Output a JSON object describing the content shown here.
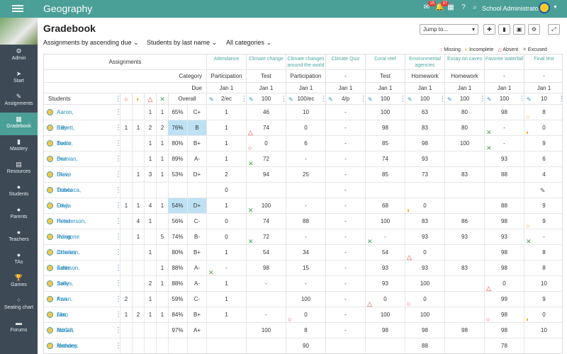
{
  "topbar": {
    "title": "Geography",
    "badges": {
      "messages": "15",
      "notifications": "37"
    },
    "user": "School Administrator"
  },
  "sidebar": {
    "items": [
      {
        "label": "Admin",
        "icon": "⚙"
      },
      {
        "label": "Start",
        "icon": "➤"
      },
      {
        "label": "Assignments",
        "icon": "✎"
      },
      {
        "label": "Gradebook",
        "icon": "▦"
      },
      {
        "label": "Mastery",
        "icon": "▮"
      },
      {
        "label": "Resources",
        "icon": "▤"
      },
      {
        "label": "Students",
        "icon": "●"
      },
      {
        "label": "Parents",
        "icon": "●"
      },
      {
        "label": "Teachers",
        "icon": "●"
      },
      {
        "label": "TAs",
        "icon": "●"
      },
      {
        "label": "Games",
        "icon": "🏆"
      },
      {
        "label": "Seating chart",
        "icon": "⁘"
      },
      {
        "label": "Forums",
        "icon": "▬"
      }
    ]
  },
  "page": {
    "title": "Gradebook",
    "filters": [
      "Assignments by ascending due",
      "Students by last name",
      "All categories"
    ],
    "jump": "Jump to..."
  },
  "legend": [
    {
      "sym": "○",
      "label": "Missing",
      "color": "#e53935"
    },
    {
      "sym": "◐",
      "label": "Incomplete",
      "color": "#f2a000"
    },
    {
      "sym": "△",
      "label": "Absent",
      "color": "#e53935"
    },
    {
      "sym": "✕",
      "label": "Excused",
      "color": "#43a047"
    }
  ],
  "header": {
    "assignments": "Assignments",
    "category": "Category",
    "due": "Due",
    "students": "Students",
    "overall": "Overall"
  },
  "assignments": [
    {
      "name": "Attendance",
      "category": "Participation",
      "due": "Jan 1",
      "pts": "2/ec"
    },
    {
      "name": "Climate change",
      "category": "Test",
      "due": "Jan 1",
      "pts": "100"
    },
    {
      "name": "Climate changes around the world",
      "category": "Participation",
      "due": "Jan 1",
      "pts": "100/ec"
    },
    {
      "name": "Climate Quiz",
      "category": "-",
      "due": "Jan 1",
      "pts": "4/p"
    },
    {
      "name": "Coral reef",
      "category": "Test",
      "due": "Jan 1",
      "pts": "100"
    },
    {
      "name": "Environmental agencies",
      "category": "Homework",
      "due": "Jan 1",
      "pts": "100"
    },
    {
      "name": "Essay on caves",
      "category": "Homework",
      "due": "Jan 1",
      "pts": "100"
    },
    {
      "name": "Favorite waterfall",
      "category": "-",
      "due": "Jan 1",
      "pts": "100"
    },
    {
      "name": "Final test",
      "category": "-",
      "due": "Jan 1",
      "pts": "10"
    }
  ],
  "students": [
    {
      "name": "Aaron, Billy",
      "m": "",
      "i": "",
      "a": "1",
      "x": "1",
      "pct": "65%",
      "grade": "C+",
      "hl": false,
      "s": [
        "1",
        "46",
        "10",
        "-",
        "100",
        "63",
        "80",
        "98",
        "8"
      ]
    },
    {
      "name": "Benett, Tudor",
      "m": "1",
      "i": "1",
      "a": "2",
      "x": "2",
      "pct": "76%",
      "grade": "B",
      "hl": true,
      "s": [
        "1",
        "74",
        "0",
        "-",
        "98",
        "83",
        "80",
        "-",
        "0"
      ]
    },
    {
      "name": "Besto, Bex",
      "m": "",
      "i": "",
      "a": "1",
      "x": "1",
      "pct": "80%",
      "grade": "B+",
      "hl": false,
      "s": [
        "1",
        "0",
        "6",
        "-",
        "85",
        "98",
        "100",
        "-",
        "9"
      ]
    },
    {
      "name": "Damian, Steve",
      "m": "",
      "i": "",
      "a": "1",
      "x": "1",
      "pct": "89%",
      "grade": "A-",
      "hl": false,
      "s": [
        "1",
        "72",
        "-",
        "-",
        "74",
        "93",
        "",
        "93",
        "6"
      ]
    },
    {
      "name": "Diss, Travis",
      "m": "",
      "i": "1",
      "a": "3",
      "x": "1",
      "pct": "53%",
      "grade": "D+",
      "hl": false,
      "s": [
        "2",
        "94",
        "25",
        "-",
        "85",
        "73",
        "83",
        "88",
        "4"
      ]
    },
    {
      "name": "Doboaca, Olivia",
      "m": "",
      "i": "",
      "a": "",
      "x": "",
      "pct": "",
      "grade": "",
      "hl": false,
      "s": [
        "0",
        "",
        "",
        "-",
        "",
        "",
        "",
        "",
        ""
      ]
    },
    {
      "name": "Frey, Peter",
      "m": "1",
      "i": "1",
      "a": "4",
      "x": "1",
      "pct": "54%",
      "grade": "D+",
      "hl": true,
      "s": [
        "1",
        "100",
        "-",
        "-",
        "68",
        "0",
        "",
        "88",
        "9"
      ]
    },
    {
      "name": "Henderson, Roxanne",
      "m": "",
      "i": "4",
      "a": "1",
      "x": "",
      "pct": "56%",
      "grade": "C-",
      "hl": false,
      "s": [
        "0",
        "74",
        "88",
        "-",
        "100",
        "83",
        "86",
        "98",
        "9"
      ]
    },
    {
      "name": "Irving, Charles",
      "m": "",
      "i": "1",
      "a": "",
      "x": "5",
      "pct": "74%",
      "grade": "B-",
      "hl": false,
      "s": [
        "0",
        "72",
        "-",
        "-",
        "-",
        "93",
        "93",
        "93",
        "-"
      ]
    },
    {
      "name": "Johnson, Katie",
      "m": "",
      "i": "",
      "a": "1",
      "x": "",
      "pct": "80%",
      "grade": "B+",
      "hl": false,
      "s": [
        "1",
        "54",
        "34",
        "-",
        "54",
        "0",
        "",
        "98",
        "8"
      ]
    },
    {
      "name": "Johnson, Sally",
      "m": "",
      "i": "",
      "a": "",
      "x": "1",
      "pct": "88%",
      "grade": "A-",
      "hl": false,
      "s": [
        "-",
        "98",
        "15",
        "-",
        "93",
        "93",
        "83",
        "98",
        "8"
      ]
    },
    {
      "name": "Jones, Ann",
      "m": "",
      "i": "",
      "a": "2",
      "x": "1",
      "pct": "88%",
      "grade": "A-",
      "hl": false,
      "s": [
        "1",
        "-",
        "-",
        "-",
        "93",
        "100",
        "",
        "0",
        "10"
      ]
    },
    {
      "name": "Kwan, Alan",
      "m": "2",
      "i": "",
      "a": "1",
      "x": "",
      "pct": "59%",
      "grade": "C-",
      "hl": false,
      "s": [
        "1",
        "",
        "100",
        "-",
        "0",
        "0",
        "",
        "99",
        "9"
      ]
    },
    {
      "name": "Lim, Adrian",
      "m": "1",
      "i": "2",
      "a": "1",
      "x": "1",
      "pct": "84%",
      "grade": "B+",
      "hl": false,
      "s": [
        "1",
        "-",
        "0",
        "-",
        "100",
        "100",
        "",
        "98",
        "0"
      ]
    },
    {
      "name": "McGill, Anthony",
      "m": "",
      "i": "",
      "a": "",
      "x": "",
      "pct": "97%",
      "grade": "A+",
      "hl": false,
      "s": [
        "",
        "100",
        "8",
        "-",
        "98",
        "98",
        "98",
        "98",
        "10"
      ]
    },
    {
      "name": "Mendes, Lois",
      "m": "",
      "i": "",
      "a": "",
      "x": "",
      "pct": "",
      "grade": "",
      "hl": false,
      "s": [
        "",
        "",
        "90",
        "",
        "",
        "88",
        "",
        "78",
        ""
      ]
    }
  ],
  "marks": [
    {
      "r": 0,
      "c": 8,
      "sym": "○",
      "color": "#f2a000"
    },
    {
      "r": 1,
      "c": 1,
      "sym": "△",
      "color": "#e53935"
    },
    {
      "r": 1,
      "c": 7,
      "sym": "✕",
      "color": "#43a047"
    },
    {
      "r": 1,
      "c": 8,
      "sym": "◐",
      "color": "#f2a000"
    },
    {
      "r": 2,
      "c": 1,
      "sym": "○",
      "color": "#e53935"
    },
    {
      "r": 2,
      "c": 7,
      "sym": "✕",
      "color": "#43a047"
    },
    {
      "r": 3,
      "c": 1,
      "sym": "✕",
      "color": "#43a047"
    },
    {
      "r": 6,
      "c": 1,
      "sym": "✕",
      "color": "#43a047"
    },
    {
      "r": 6,
      "c": 5,
      "sym": "◐",
      "color": "#f2a000"
    },
    {
      "r": 7,
      "c": 8,
      "sym": "○",
      "color": "#f2a000"
    },
    {
      "r": 8,
      "c": 1,
      "sym": "✕",
      "color": "#43a047"
    },
    {
      "r": 8,
      "c": 4,
      "sym": "✕",
      "color": "#43a047"
    },
    {
      "r": 8,
      "c": 8,
      "sym": "✕",
      "color": "#43a047"
    },
    {
      "r": 9,
      "c": 5,
      "sym": "△",
      "color": "#e53935"
    },
    {
      "r": 10,
      "c": 0,
      "sym": "✕",
      "color": "#43a047"
    },
    {
      "r": 11,
      "c": 7,
      "sym": "△",
      "color": "#e53935"
    },
    {
      "r": 12,
      "c": 4,
      "sym": "△",
      "color": "#e53935"
    },
    {
      "r": 12,
      "c": 5,
      "sym": "○",
      "color": "#e53935"
    },
    {
      "r": 13,
      "c": 2,
      "sym": "○",
      "color": "#e53935"
    },
    {
      "r": 13,
      "c": 7,
      "sym": "○",
      "color": "#e53935"
    },
    {
      "r": 13,
      "c": 8,
      "sym": "◐",
      "color": "#f2a000"
    }
  ]
}
